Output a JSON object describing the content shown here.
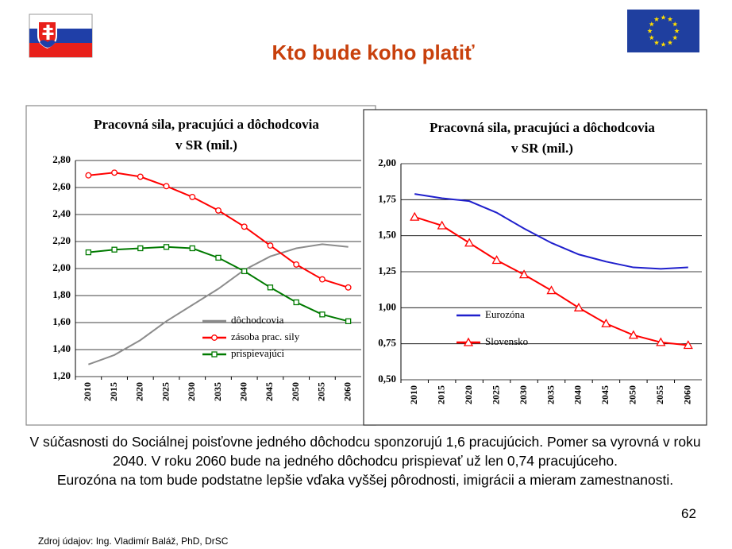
{
  "title": "Kto bude koho platiť",
  "chart_data": [
    {
      "type": "line",
      "title": [
        "Pracovná sila, pracujúci a dôchodcovia",
        "v SR (mil.)"
      ],
      "categories": [
        "2010",
        "2015",
        "2020",
        "2025",
        "2030",
        "2035",
        "2040",
        "2045",
        "2050",
        "2055",
        "2060"
      ],
      "ylim": [
        1.2,
        2.8
      ],
      "yticks": [
        {
          "value": 1.2,
          "label": "1,20"
        },
        {
          "value": 1.4,
          "label": "1,40"
        },
        {
          "value": 1.6,
          "label": "1,60"
        },
        {
          "value": 1.8,
          "label": "1,80"
        },
        {
          "value": 2.0,
          "label": "2,00"
        },
        {
          "value": 2.2,
          "label": "2,20"
        },
        {
          "value": 2.4,
          "label": "2,40"
        },
        {
          "value": 2.6,
          "label": "2,60"
        },
        {
          "value": 2.8,
          "label": "2,80"
        }
      ],
      "grid": true,
      "legend": "lower right",
      "series": [
        {
          "name": "dôchodcovia",
          "color": "#8c8c8c",
          "marker": null,
          "values": [
            1.29,
            1.36,
            1.47,
            1.61,
            1.73,
            1.85,
            1.99,
            2.09,
            2.15,
            2.18,
            2.16
          ]
        },
        {
          "name": "zásoba prac. sily",
          "color": "#ff0000",
          "marker": "circle",
          "values": [
            2.69,
            2.71,
            2.68,
            2.61,
            2.53,
            2.43,
            2.31,
            2.17,
            2.03,
            1.92,
            1.86
          ]
        },
        {
          "name": "prispievajúci",
          "color": "#007a00",
          "marker": "square",
          "values": [
            2.12,
            2.14,
            2.15,
            2.16,
            2.15,
            2.08,
            1.98,
            1.86,
            1.75,
            1.66,
            1.61
          ]
        }
      ]
    },
    {
      "type": "line",
      "title": [
        "Pracovná sila, pracujúci a dôchodcovia",
        "v SR (mil.)"
      ],
      "categories": [
        "2010",
        "2015",
        "2020",
        "2025",
        "2030",
        "2035",
        "2040",
        "2045",
        "2050",
        "2055",
        "2060"
      ],
      "ylim": [
        0.5,
        2.0
      ],
      "yticks": [
        {
          "value": 0.5,
          "label": "0,50"
        },
        {
          "value": 0.75,
          "label": "0,75"
        },
        {
          "value": 1.0,
          "label": "1,00"
        },
        {
          "value": 1.25,
          "label": "1,25"
        },
        {
          "value": 1.5,
          "label": "1,50"
        },
        {
          "value": 1.75,
          "label": "1,75"
        },
        {
          "value": 2.0,
          "label": "2,00"
        }
      ],
      "grid": true,
      "legend": "lower left",
      "series": [
        {
          "name": "Eurozóna",
          "color": "#1f1fcc",
          "marker": null,
          "values": [
            1.79,
            1.76,
            1.74,
            1.66,
            1.55,
            1.45,
            1.37,
            1.32,
            1.28,
            1.27,
            1.28
          ]
        },
        {
          "name": "Slovensko",
          "color": "#ff0000",
          "marker": "triangle",
          "values": [
            1.63,
            1.57,
            1.45,
            1.33,
            1.23,
            1.12,
            1.0,
            0.89,
            0.81,
            0.76,
            0.74
          ]
        }
      ]
    }
  ],
  "body_text": [
    "V súčasnosti do Sociálnej poisťovne jedného dôchodcu sponzorujú 1,6 pracujúcich. Pomer sa vyrovná v roku 2040. V roku 2060 bude na jedného dôchodcu prispievať už len 0,74 pracujúceho.",
    "Eurozóna na tom bude podstatne lepšie vďaka vyššej pôrodnosti, imigrácii a mieram zamestnanosti."
  ],
  "page_number": "62",
  "source": "Zdroj údajov: Ing. Vladimír Baláž, PhD, DrSC"
}
